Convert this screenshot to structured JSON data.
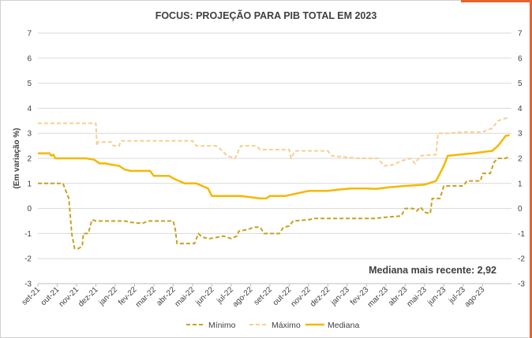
{
  "colors": {
    "minimo": "#c9a020",
    "maximo": "#f6cf8f",
    "mediana": "#f5b800",
    "grid": "#d9d9d9",
    "accent": "#e8622c"
  },
  "chart_data": {
    "type": "line",
    "title": "FOCUS: PROJEÇÃO PARA PIB TOTAL EM 2023",
    "ylabel": "(Em variação %)",
    "xlabel": "",
    "ylim": [
      -3,
      7
    ],
    "yticks": [
      "-3",
      "-2",
      "-1",
      "0",
      "1",
      "2",
      "3",
      "4",
      "5",
      "6",
      "7"
    ],
    "secondary_yaxis": true,
    "grid": "horizontal",
    "legend_position": "bottom",
    "categories": [
      "set-21",
      "out-21",
      "nov-21",
      "dez-21",
      "jan-22",
      "fev-22",
      "mar-22",
      "abr-22",
      "mai-22",
      "jun-22",
      "jul-22",
      "ago-22",
      "set-22",
      "out-22",
      "nov-22",
      "dez-22",
      "jan-23",
      "fev-23",
      "mar-23",
      "abr-23",
      "mai-23",
      "jun-23",
      "jul-23",
      "ago-23"
    ],
    "annotation": "Mediana mais recente: 2,92",
    "series": [
      {
        "name": "Mínimo",
        "style": "dashed-dark",
        "points": [
          [
            0,
            1.0
          ],
          [
            1.3,
            1.0
          ],
          [
            1.6,
            0.4
          ],
          [
            1.75,
            -1.0
          ],
          [
            1.9,
            -1.6
          ],
          [
            2.1,
            -1.6
          ],
          [
            2.3,
            -1.5
          ],
          [
            2.35,
            -1.0
          ],
          [
            2.6,
            -1.0
          ],
          [
            2.8,
            -0.45
          ],
          [
            3.0,
            -0.5
          ],
          [
            4.5,
            -0.5
          ],
          [
            4.8,
            -0.55
          ],
          [
            5.4,
            -0.6
          ],
          [
            5.7,
            -0.5
          ],
          [
            7.0,
            -0.5
          ],
          [
            7.1,
            -0.8
          ],
          [
            7.2,
            -1.4
          ],
          [
            8.1,
            -1.4
          ],
          [
            8.3,
            -1.0
          ],
          [
            8.5,
            -1.15
          ],
          [
            8.9,
            -1.2
          ],
          [
            9.6,
            -1.1
          ],
          [
            10.0,
            -1.2
          ],
          [
            10.3,
            -1.1
          ],
          [
            10.4,
            -0.9
          ],
          [
            10.8,
            -0.85
          ],
          [
            11.2,
            -0.75
          ],
          [
            11.5,
            -0.75
          ],
          [
            11.7,
            -1.0
          ],
          [
            12.5,
            -1.0
          ],
          [
            12.7,
            -0.75
          ],
          [
            13.0,
            -0.7
          ],
          [
            13.2,
            -0.5
          ],
          [
            14.0,
            -0.45
          ],
          [
            14.3,
            -0.4
          ],
          [
            16.0,
            -0.4
          ],
          [
            17.4,
            -0.4
          ],
          [
            18.0,
            -0.35
          ],
          [
            18.8,
            -0.3
          ],
          [
            19.0,
            0.0
          ],
          [
            19.4,
            0.0
          ],
          [
            19.6,
            -0.1
          ],
          [
            19.8,
            0.05
          ],
          [
            20.0,
            -0.15
          ],
          [
            20.3,
            -0.2
          ],
          [
            20.4,
            0.4
          ],
          [
            20.8,
            0.4
          ],
          [
            21.0,
            0.9
          ],
          [
            22.0,
            0.9
          ],
          [
            22.2,
            1.1
          ],
          [
            22.9,
            1.1
          ],
          [
            23.0,
            1.4
          ],
          [
            23.4,
            1.4
          ],
          [
            23.6,
            1.85
          ],
          [
            23.8,
            2.0
          ],
          [
            24.2,
            2.0
          ],
          [
            24.4,
            2.1
          ]
        ]
      },
      {
        "name": "Máximo",
        "style": "dashed-light",
        "points": [
          [
            0,
            3.4
          ],
          [
            3.0,
            3.4
          ],
          [
            3.05,
            2.5
          ],
          [
            3.1,
            2.65
          ],
          [
            3.8,
            2.65
          ],
          [
            3.9,
            2.5
          ],
          [
            4.2,
            2.5
          ],
          [
            4.3,
            2.7
          ],
          [
            8.0,
            2.7
          ],
          [
            8.2,
            2.5
          ],
          [
            9.2,
            2.5
          ],
          [
            9.4,
            2.4
          ],
          [
            9.8,
            2.1
          ],
          [
            10.2,
            2.0
          ],
          [
            10.5,
            2.5
          ],
          [
            11.3,
            2.5
          ],
          [
            11.5,
            2.35
          ],
          [
            13.0,
            2.35
          ],
          [
            13.1,
            2.0
          ],
          [
            13.3,
            2.3
          ],
          [
            15.0,
            2.3
          ],
          [
            15.2,
            2.1
          ],
          [
            16.6,
            2.0
          ],
          [
            17.6,
            2.0
          ],
          [
            17.9,
            1.7
          ],
          [
            18.4,
            1.75
          ],
          [
            18.8,
            1.9
          ],
          [
            19.3,
            2.0
          ],
          [
            19.5,
            1.8
          ],
          [
            19.8,
            2.1
          ],
          [
            20.6,
            2.15
          ],
          [
            20.7,
            3.0
          ],
          [
            21.3,
            3.0
          ],
          [
            22.0,
            3.05
          ],
          [
            23.0,
            3.05
          ],
          [
            23.5,
            3.2
          ],
          [
            23.8,
            3.5
          ],
          [
            24.2,
            3.6
          ],
          [
            24.4,
            3.6
          ]
        ]
      },
      {
        "name": "Mediana",
        "style": "solid",
        "points": [
          [
            0,
            2.2
          ],
          [
            0.6,
            2.2
          ],
          [
            0.7,
            2.1
          ],
          [
            0.8,
            2.15
          ],
          [
            0.9,
            2.0
          ],
          [
            2.5,
            2.0
          ],
          [
            2.9,
            1.95
          ],
          [
            3.2,
            1.8
          ],
          [
            3.5,
            1.8
          ],
          [
            3.8,
            1.75
          ],
          [
            4.2,
            1.7
          ],
          [
            4.5,
            1.55
          ],
          [
            4.8,
            1.5
          ],
          [
            5.8,
            1.5
          ],
          [
            6.0,
            1.3
          ],
          [
            6.8,
            1.3
          ],
          [
            7.0,
            1.2
          ],
          [
            7.3,
            1.1
          ],
          [
            7.6,
            1.0
          ],
          [
            8.2,
            1.0
          ],
          [
            8.5,
            0.9
          ],
          [
            8.8,
            0.8
          ],
          [
            9.0,
            0.5
          ],
          [
            9.3,
            0.5
          ],
          [
            10.5,
            0.5
          ],
          [
            11.0,
            0.45
          ],
          [
            11.5,
            0.4
          ],
          [
            11.8,
            0.4
          ],
          [
            12.0,
            0.5
          ],
          [
            12.8,
            0.5
          ],
          [
            13.4,
            0.6
          ],
          [
            14.0,
            0.7
          ],
          [
            15.0,
            0.7
          ],
          [
            15.5,
            0.75
          ],
          [
            16.2,
            0.8
          ],
          [
            17.0,
            0.8
          ],
          [
            17.5,
            0.78
          ],
          [
            18.2,
            0.85
          ],
          [
            19.0,
            0.9
          ],
          [
            20.0,
            0.95
          ],
          [
            20.6,
            1.1
          ],
          [
            20.8,
            1.4
          ],
          [
            21.0,
            1.7
          ],
          [
            21.2,
            2.1
          ],
          [
            21.8,
            2.15
          ],
          [
            22.5,
            2.2
          ],
          [
            23.0,
            2.25
          ],
          [
            23.5,
            2.3
          ],
          [
            23.8,
            2.5
          ],
          [
            24.0,
            2.7
          ],
          [
            24.2,
            2.9
          ],
          [
            24.4,
            2.92
          ]
        ]
      }
    ]
  }
}
